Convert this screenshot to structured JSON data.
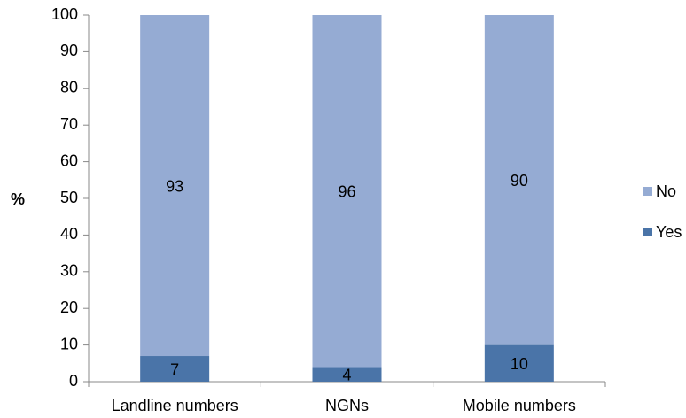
{
  "chart_data": {
    "type": "stacked_bar",
    "y_label": "%",
    "categories": [
      "Landline numbers",
      "NGNs",
      "Mobile numbers"
    ],
    "series": [
      {
        "name": "Yes",
        "color": "#4a74a8",
        "values": [
          7,
          4,
          10
        ]
      },
      {
        "name": "No",
        "color": "#95abd3",
        "values": [
          93,
          96,
          90
        ]
      }
    ],
    "ylim": [
      0,
      100
    ],
    "yticks": [
      0,
      10,
      20,
      30,
      40,
      50,
      60,
      70,
      80,
      90,
      100
    ],
    "legend": "right"
  }
}
